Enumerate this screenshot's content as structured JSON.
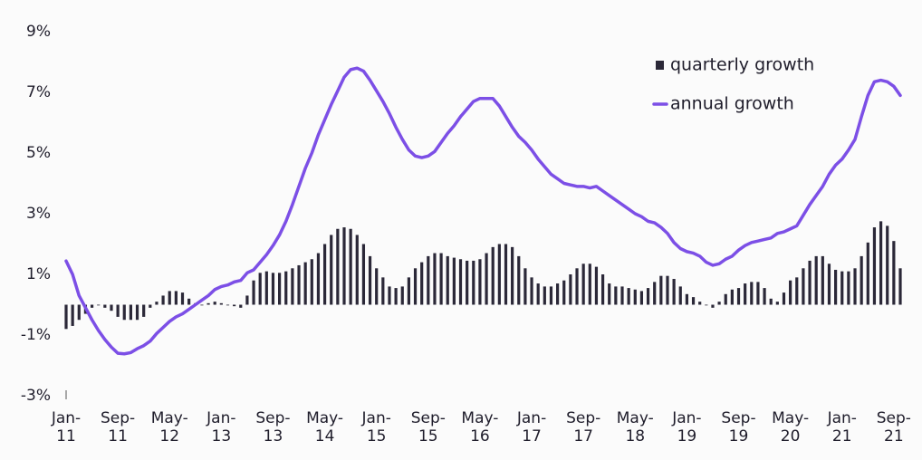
{
  "chart_data": {
    "type": "combo",
    "categories": [
      "Jan-\n11",
      null,
      null,
      null,
      null,
      null,
      null,
      null,
      "Sep-\n11",
      null,
      null,
      null,
      null,
      null,
      null,
      null,
      "May-\n12",
      null,
      null,
      null,
      null,
      null,
      null,
      null,
      "Jan-\n13",
      null,
      null,
      null,
      null,
      null,
      null,
      null,
      "Sep-\n13",
      null,
      null,
      null,
      null,
      null,
      null,
      null,
      "May-\n14",
      null,
      null,
      null,
      null,
      null,
      null,
      null,
      "Jan-\n15",
      null,
      null,
      null,
      null,
      null,
      null,
      null,
      "Sep-\n15",
      null,
      null,
      null,
      null,
      null,
      null,
      null,
      "May-\n16",
      null,
      null,
      null,
      null,
      null,
      null,
      null,
      "Jan-\n17",
      null,
      null,
      null,
      null,
      null,
      null,
      null,
      "Sep-\n17",
      null,
      null,
      null,
      null,
      null,
      null,
      null,
      "May-\n18",
      null,
      null,
      null,
      null,
      null,
      null,
      null,
      "Jan-\n19",
      null,
      null,
      null,
      null,
      null,
      null,
      null,
      "Sep-\n19",
      null,
      null,
      null,
      null,
      null,
      null,
      null,
      "May-\n20",
      null,
      null,
      null,
      null,
      null,
      null,
      null,
      "Jan-\n21",
      null,
      null,
      null,
      null,
      null,
      null,
      null,
      "Sep-\n21",
      null
    ],
    "series": [
      {
        "name": "quarterly growth",
        "type": "bar",
        "color": "#2b2838",
        "values": [
          -0.8,
          -0.7,
          -0.5,
          -0.3,
          -0.1,
          0,
          -0.1,
          -0.2,
          -0.4,
          -0.5,
          -0.5,
          -0.5,
          -0.4,
          -0.1,
          0.1,
          0.3,
          0.45,
          0.45,
          0.4,
          0.2,
          0.05,
          0,
          0.05,
          0.1,
          0.05,
          0,
          -0.05,
          -0.1,
          0.3,
          0.8,
          1.05,
          1.1,
          1.05,
          1.05,
          1.1,
          1.2,
          1.3,
          1.4,
          1.5,
          1.7,
          2.0,
          2.3,
          2.5,
          2.55,
          2.5,
          2.3,
          2.0,
          1.6,
          1.2,
          0.9,
          0.6,
          0.55,
          0.6,
          0.9,
          1.2,
          1.4,
          1.6,
          1.7,
          1.7,
          1.6,
          1.55,
          1.5,
          1.45,
          1.45,
          1.5,
          1.7,
          1.9,
          2.0,
          2.0,
          1.9,
          1.6,
          1.2,
          0.9,
          0.7,
          0.6,
          0.6,
          0.7,
          0.8,
          1.0,
          1.2,
          1.35,
          1.35,
          1.25,
          1.0,
          0.7,
          0.6,
          0.6,
          0.55,
          0.5,
          0.45,
          0.55,
          0.75,
          0.95,
          0.95,
          0.85,
          0.6,
          0.35,
          0.25,
          0.1,
          0,
          -0.1,
          0.1,
          0.35,
          0.5,
          0.55,
          0.7,
          0.75,
          0.75,
          0.55,
          0.2,
          0.1,
          0.4,
          0.8,
          0.9,
          1.2,
          1.45,
          1.6,
          1.6,
          1.35,
          1.15,
          1.1,
          1.1,
          1.2,
          1.6,
          2.05,
          2.55,
          2.75,
          2.6,
          2.1,
          1.2
        ]
      },
      {
        "name": "annual growth",
        "type": "line",
        "color": "#7c4fe6",
        "values": [
          1.44,
          1.0,
          0.3,
          -0.1,
          -0.5,
          -0.85,
          -1.15,
          -1.4,
          -1.6,
          -1.62,
          -1.58,
          -1.45,
          -1.35,
          -1.2,
          -0.95,
          -0.75,
          -0.55,
          -0.4,
          -0.3,
          -0.15,
          0,
          0.15,
          0.3,
          0.5,
          0.6,
          0.65,
          0.75,
          0.8,
          1.05,
          1.15,
          1.4,
          1.65,
          1.95,
          2.3,
          2.75,
          3.3,
          3.9,
          4.5,
          5.0,
          5.6,
          6.1,
          6.6,
          7.05,
          7.5,
          7.75,
          7.8,
          7.7,
          7.4,
          7.05,
          6.7,
          6.3,
          5.85,
          5.45,
          5.1,
          4.9,
          4.85,
          4.9,
          5.05,
          5.35,
          5.65,
          5.9,
          6.2,
          6.45,
          6.7,
          6.8,
          6.8,
          6.8,
          6.55,
          6.2,
          5.85,
          5.55,
          5.35,
          5.1,
          4.8,
          4.55,
          4.3,
          4.15,
          4.0,
          3.95,
          3.9,
          3.9,
          3.85,
          3.9,
          3.75,
          3.6,
          3.45,
          3.3,
          3.15,
          3.0,
          2.9,
          2.75,
          2.7,
          2.55,
          2.35,
          2.05,
          1.85,
          1.75,
          1.7,
          1.6,
          1.4,
          1.3,
          1.35,
          1.5,
          1.6,
          1.8,
          1.95,
          2.05,
          2.1,
          2.15,
          2.2,
          2.35,
          2.4,
          2.5,
          2.6,
          2.95,
          3.3,
          3.6,
          3.9,
          4.3,
          4.6,
          4.8,
          5.1,
          5.45,
          6.2,
          6.9,
          7.35,
          7.4,
          7.35,
          7.2,
          6.9
        ]
      }
    ],
    "ylim": [
      -3,
      9
    ],
    "yticks": [
      {
        "value": -3,
        "label": "-3%"
      },
      {
        "value": -1,
        "label": "-1%"
      },
      {
        "value": 1,
        "label": "1%"
      },
      {
        "value": 3,
        "label": "3%"
      },
      {
        "value": 5,
        "label": "5%"
      },
      {
        "value": 7,
        "label": "7%"
      },
      {
        "value": 9,
        "label": "9%"
      }
    ],
    "grid": false,
    "legend": "top-right"
  }
}
